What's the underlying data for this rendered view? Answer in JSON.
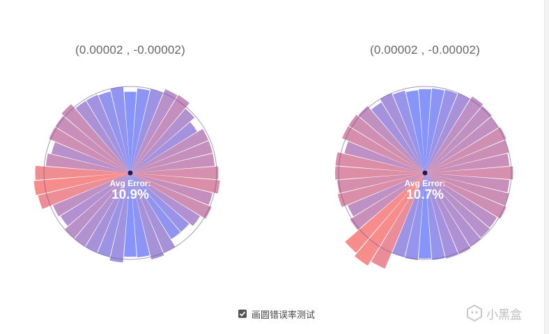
{
  "panels": [
    {
      "coord": "(0.00002 , -0.00002)",
      "avg_label": "Avg Error:",
      "avg_value": "10.9%",
      "radii": [
        0.94,
        0.98,
        1.0,
        1.05,
        1.06,
        0.98,
        0.91,
        0.98,
        0.98,
        0.98,
        1.02,
        1.04,
        0.98,
        1.02,
        0.95,
        0.9,
        0.9,
        1.0,
        1.03,
        0.98,
        0.97,
        1.04,
        1.0,
        1.0,
        1.0,
        1.0,
        0.95,
        0.97,
        1.1,
        1.12,
        1.1,
        0.98,
        0.94,
        1.02,
        1.02,
        1.05,
        0.98,
        0.98,
        0.97,
        1.0
      ]
    },
    {
      "coord": "(0.00002 , -0.00002)",
      "avg_label": "Avg Error:",
      "avg_value": "10.7%",
      "radii": [
        0.97,
        0.98,
        0.99,
        1.0,
        1.04,
        1.02,
        1.0,
        1.02,
        1.0,
        0.98,
        1.02,
        0.98,
        1.0,
        1.02,
        0.98,
        0.99,
        1.0,
        1.02,
        1.02,
        1.01,
        0.99,
        1.01,
        1.0,
        1.2,
        1.26,
        1.22,
        1.02,
        0.97,
        1.04,
        1.02,
        1.04,
        1.04,
        0.96,
        1.04,
        1.04,
        1.02,
        0.96,
        1.0,
        0.98,
        0.96
      ]
    }
  ],
  "toggle": {
    "checked": true,
    "label": "画圆错误率测试"
  },
  "watermark": {
    "text": "小黑盒"
  },
  "colors": {
    "good": "#7d8cfa",
    "bad": "#f58282",
    "ring": "#6b4f8c",
    "center": "#221a55"
  }
}
